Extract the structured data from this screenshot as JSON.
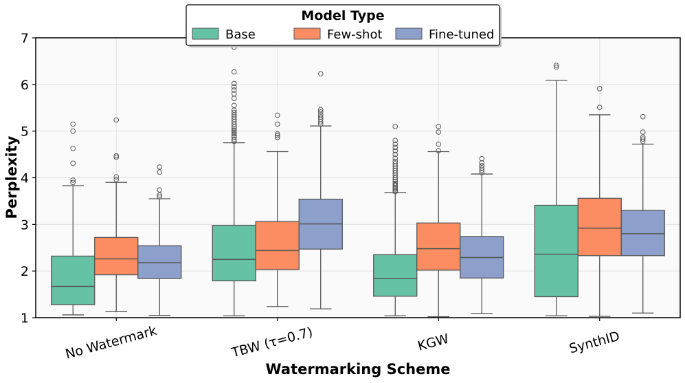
{
  "chart_data": {
    "type": "box",
    "xlabel": "Watermarking Scheme",
    "ylabel": "Perplexity",
    "ylim": [
      1,
      7
    ],
    "yticks": [
      1,
      2,
      3,
      4,
      5,
      6,
      7
    ],
    "grid": true,
    "categories": [
      "No Watermark",
      "TBW (τ=0.7)",
      "KGW",
      "SynthID"
    ],
    "legend": {
      "title": "Model Type",
      "placement": "top-center"
    },
    "series": [
      {
        "name": "Base",
        "color": "#66c2a5",
        "boxes": [
          {
            "whisker_low": 1.06,
            "q1": 1.28,
            "median": 1.67,
            "q3": 2.32,
            "whisker_high": 3.83,
            "outliers": [
              3.9,
              3.95,
              4.31,
              4.63,
              5.0,
              5.15
            ]
          },
          {
            "whisker_low": 1.04,
            "q1": 1.79,
            "median": 2.25,
            "q3": 2.98,
            "whisker_high": 4.75,
            "outliers": [
              4.78,
              4.82,
              4.87,
              4.9,
              4.94,
              4.98,
              5.02,
              5.06,
              5.1,
              5.15,
              5.2,
              5.25,
              5.3,
              5.35,
              5.4,
              5.45,
              5.55,
              5.7,
              5.8,
              5.88,
              5.95,
              6.02,
              6.27,
              6.8
            ]
          },
          {
            "whisker_low": 1.04,
            "q1": 1.46,
            "median": 1.84,
            "q3": 2.35,
            "whisker_high": 3.68,
            "outliers": [
              3.7,
              3.73,
              3.76,
              3.79,
              3.82,
              3.85,
              3.88,
              3.92,
              3.96,
              4.0,
              4.05,
              4.1,
              4.15,
              4.2,
              4.25,
              4.3,
              4.35,
              4.42,
              4.5,
              4.58,
              4.65,
              4.72,
              4.8,
              5.1
            ]
          },
          {
            "whisker_low": 1.04,
            "q1": 1.45,
            "median": 2.36,
            "q3": 3.41,
            "whisker_high": 6.09,
            "outliers": [
              6.37,
              6.41
            ]
          }
        ]
      },
      {
        "name": "Few-shot",
        "color": "#fc8d62",
        "boxes": [
          {
            "whisker_low": 1.13,
            "q1": 1.92,
            "median": 2.26,
            "q3": 2.72,
            "whisker_high": 3.9,
            "outliers": [
              3.96,
              4.02,
              4.44,
              4.47,
              5.24
            ]
          },
          {
            "whisker_low": 1.24,
            "q1": 2.03,
            "median": 2.44,
            "q3": 3.06,
            "whisker_high": 4.56,
            "outliers": [
              4.86,
              4.9,
              4.94,
              5.15,
              5.34
            ]
          },
          {
            "whisker_low": 1.02,
            "q1": 2.02,
            "median": 2.48,
            "q3": 3.03,
            "whisker_high": 4.56,
            "outliers": [
              4.58,
              4.72,
              4.98,
              5.1
            ]
          },
          {
            "whisker_low": 1.03,
            "q1": 2.33,
            "median": 2.92,
            "q3": 3.56,
            "whisker_high": 5.35,
            "outliers": [
              5.51,
              5.91
            ]
          }
        ]
      },
      {
        "name": "Fine-tuned",
        "color": "#8da0cb",
        "boxes": [
          {
            "whisker_low": 1.05,
            "q1": 1.84,
            "median": 2.18,
            "q3": 2.54,
            "whisker_high": 3.55,
            "outliers": [
              3.59,
              3.63,
              3.74,
              4.12,
              4.23
            ]
          },
          {
            "whisker_low": 1.19,
            "q1": 2.47,
            "median": 3.01,
            "q3": 3.54,
            "whisker_high": 5.11,
            "outliers": [
              5.15,
              5.2,
              5.25,
              5.3,
              5.35,
              5.41,
              5.46,
              6.23
            ]
          },
          {
            "whisker_low": 1.09,
            "q1": 1.85,
            "median": 2.29,
            "q3": 2.74,
            "whisker_high": 4.08,
            "outliers": [
              4.11,
              4.16,
              4.21,
              4.26,
              4.32,
              4.41
            ]
          },
          {
            "whisker_low": 1.1,
            "q1": 2.33,
            "median": 2.8,
            "q3": 3.3,
            "whisker_high": 4.72,
            "outliers": [
              4.78,
              4.83,
              4.87,
              4.98,
              5.31
            ]
          }
        ]
      }
    ]
  }
}
